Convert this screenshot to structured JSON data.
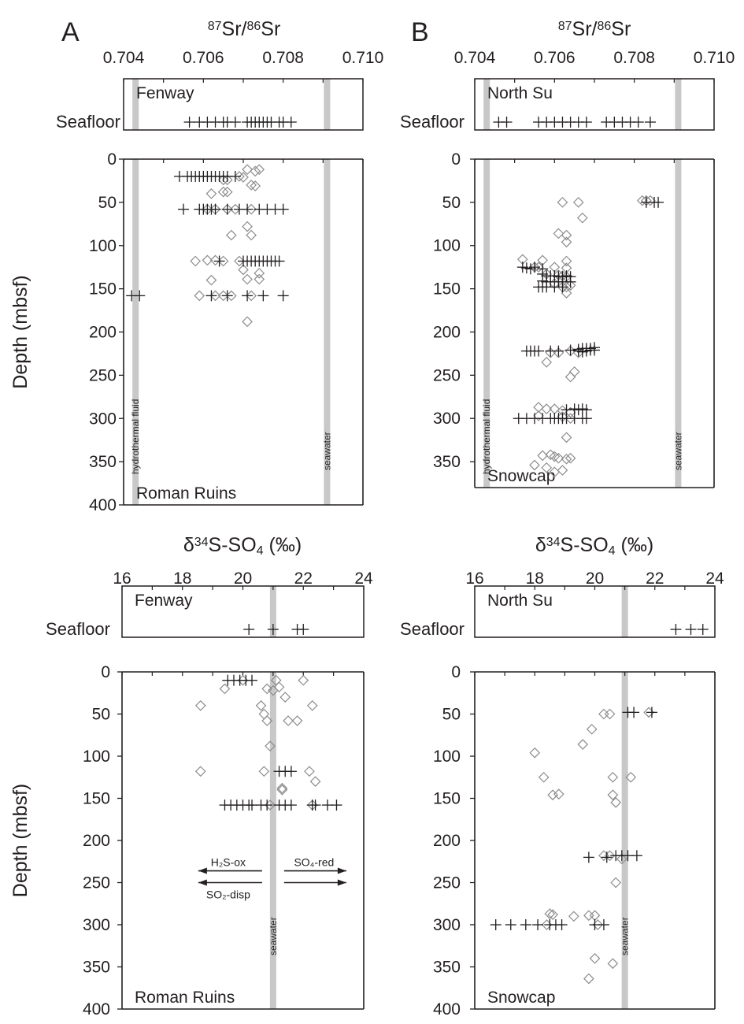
{
  "colors": {
    "ink": "#231f20",
    "reference_band": "#c8c8c8",
    "diamond": "#8c8c8c"
  },
  "marker_legend": {
    "cross": "plus-marker",
    "diamond": "diamond-marker"
  },
  "y_axis_label": "Depth (mbsf)",
  "seafloor_label": "Seafloor",
  "chart_data": [
    {
      "id": "sr_A",
      "type": "scatter",
      "panel_letter": "A",
      "title_parts": [
        "87",
        "Sr/",
        "86",
        "Sr"
      ],
      "xlim": [
        0.704,
        0.71
      ],
      "x_ticks": [
        "0.704",
        "0.706",
        "0.708",
        "0.710"
      ],
      "ylim": [
        0,
        400
      ],
      "y_ticks": [
        "0",
        "50",
        "100",
        "150",
        "200",
        "250",
        "300",
        "350",
        "400"
      ],
      "y_inverted": true,
      "seafloor_site": "Fenway",
      "site": "Roman Ruins",
      "bands": [
        {
          "x": 0.7043,
          "label": "hydrothermal fluid"
        },
        {
          "x": 0.7091,
          "label": "seawater"
        }
      ],
      "seafloor_crosses": [
        0.70565,
        0.7059,
        0.7061,
        0.7063,
        0.7065,
        0.7066,
        0.7068,
        0.7071,
        0.7072,
        0.7073,
        0.7074,
        0.7075,
        0.7076,
        0.7077,
        0.7079,
        0.708,
        0.7082
      ],
      "crosses": [
        [
          0.7054,
          20
        ],
        [
          0.7056,
          20
        ],
        [
          0.7057,
          20
        ],
        [
          0.7058,
          20
        ],
        [
          0.7059,
          20
        ],
        [
          0.706,
          20
        ],
        [
          0.7061,
          20
        ],
        [
          0.7062,
          20
        ],
        [
          0.7063,
          20
        ],
        [
          0.7064,
          20
        ],
        [
          0.7065,
          20
        ],
        [
          0.7066,
          20
        ],
        [
          0.7068,
          20
        ],
        [
          0.7055,
          58
        ],
        [
          0.7059,
          58
        ],
        [
          0.706,
          58
        ],
        [
          0.7061,
          58
        ],
        [
          0.7062,
          58
        ],
        [
          0.7063,
          58
        ],
        [
          0.7066,
          58
        ],
        [
          0.7069,
          58
        ],
        [
          0.7071,
          58
        ],
        [
          0.7074,
          58
        ],
        [
          0.7076,
          58
        ],
        [
          0.7078,
          58
        ],
        [
          0.708,
          58
        ],
        [
          0.7064,
          118
        ],
        [
          0.707,
          118
        ],
        [
          0.7071,
          118
        ],
        [
          0.7072,
          118
        ],
        [
          0.7073,
          118
        ],
        [
          0.7074,
          118
        ],
        [
          0.7075,
          118
        ],
        [
          0.7076,
          118
        ],
        [
          0.7077,
          118
        ],
        [
          0.7078,
          118
        ],
        [
          0.7079,
          118
        ],
        [
          0.7042,
          158
        ],
        [
          0.7044,
          158
        ],
        [
          0.7062,
          158
        ],
        [
          0.7066,
          158
        ],
        [
          0.7071,
          158
        ],
        [
          0.7075,
          158
        ],
        [
          0.708,
          158
        ]
      ],
      "diamonds": [
        [
          0.7071,
          12
        ],
        [
          0.7074,
          12
        ],
        [
          0.7073,
          14
        ],
        [
          0.7069,
          20
        ],
        [
          0.707,
          21
        ],
        [
          0.7065,
          24
        ],
        [
          0.7066,
          24
        ],
        [
          0.7072,
          30
        ],
        [
          0.7073,
          31
        ],
        [
          0.7065,
          38
        ],
        [
          0.7066,
          38
        ],
        [
          0.7062,
          40
        ],
        [
          0.7061,
          58
        ],
        [
          0.7063,
          58
        ],
        [
          0.7066,
          58
        ],
        [
          0.7068,
          58
        ],
        [
          0.7072,
          58
        ],
        [
          0.7071,
          78
        ],
        [
          0.7067,
          88
        ],
        [
          0.7072,
          88
        ],
        [
          0.7058,
          118
        ],
        [
          0.7061,
          117
        ],
        [
          0.7063,
          117
        ],
        [
          0.7065,
          118
        ],
        [
          0.7069,
          118
        ],
        [
          0.707,
          128
        ],
        [
          0.7074,
          132
        ],
        [
          0.7062,
          140
        ],
        [
          0.7071,
          139
        ],
        [
          0.7074,
          139
        ],
        [
          0.7059,
          158
        ],
        [
          0.7063,
          158
        ],
        [
          0.7065,
          158
        ],
        [
          0.7067,
          158
        ],
        [
          0.7072,
          158
        ],
        [
          0.7071,
          188
        ]
      ]
    },
    {
      "id": "sr_B",
      "type": "scatter",
      "panel_letter": "B",
      "title_parts": [
        "87",
        "Sr/",
        "86",
        "Sr"
      ],
      "xlim": [
        0.704,
        0.71
      ],
      "x_ticks": [
        "0.704",
        "0.706",
        "0.708",
        "0.710"
      ],
      "ylim": [
        0,
        380
      ],
      "y_ticks": [
        "0",
        "50",
        "100",
        "150",
        "200",
        "250",
        "300",
        "350"
      ],
      "y_inverted": true,
      "seafloor_site": "North Su",
      "site": "Snowcap",
      "bands": [
        {
          "x": 0.7043,
          "label": "hydrothermal fluid"
        },
        {
          "x": 0.7091,
          "label": "seawater"
        }
      ],
      "seafloor_crosses": [
        0.7046,
        0.7048,
        0.7056,
        0.7058,
        0.706,
        0.7062,
        0.7064,
        0.7066,
        0.7068,
        0.7073,
        0.7075,
        0.7077,
        0.7079,
        0.7081,
        0.7084
      ],
      "crosses": [
        [
          0.7083,
          50
        ],
        [
          0.7085,
          50
        ],
        [
          0.7086,
          50
        ],
        [
          0.7052,
          125
        ],
        [
          0.7053,
          126
        ],
        [
          0.7054,
          127
        ],
        [
          0.7055,
          125
        ],
        [
          0.7057,
          127
        ],
        [
          0.7057,
          133
        ],
        [
          0.7058,
          135
        ],
        [
          0.7059,
          135
        ],
        [
          0.706,
          135
        ],
        [
          0.7061,
          136
        ],
        [
          0.7062,
          136
        ],
        [
          0.7063,
          135
        ],
        [
          0.7064,
          136
        ],
        [
          0.7057,
          141
        ],
        [
          0.7058,
          142
        ],
        [
          0.7059,
          142
        ],
        [
          0.7061,
          142
        ],
        [
          0.7062,
          142
        ],
        [
          0.7064,
          142
        ],
        [
          0.7056,
          148
        ],
        [
          0.7057,
          148
        ],
        [
          0.7058,
          148
        ],
        [
          0.706,
          148
        ],
        [
          0.7062,
          148
        ],
        [
          0.7053,
          222
        ],
        [
          0.7054,
          222
        ],
        [
          0.7055,
          222
        ],
        [
          0.7056,
          222
        ],
        [
          0.7059,
          222
        ],
        [
          0.7061,
          222
        ],
        [
          0.7064,
          221
        ],
        [
          0.7066,
          220
        ],
        [
          0.7067,
          219
        ],
        [
          0.7068,
          219
        ],
        [
          0.7069,
          219
        ],
        [
          0.707,
          218
        ],
        [
          0.7066,
          222
        ],
        [
          0.7067,
          223
        ],
        [
          0.7068,
          222
        ],
        [
          0.7069,
          221
        ],
        [
          0.707,
          221
        ],
        [
          0.7063,
          290
        ],
        [
          0.7065,
          289
        ],
        [
          0.7066,
          290
        ],
        [
          0.7067,
          289
        ],
        [
          0.7068,
          290
        ],
        [
          0.7051,
          300
        ],
        [
          0.7053,
          300
        ],
        [
          0.7055,
          300
        ],
        [
          0.7057,
          300
        ],
        [
          0.7059,
          300
        ],
        [
          0.706,
          300
        ],
        [
          0.7061,
          300
        ],
        [
          0.7062,
          300
        ],
        [
          0.7063,
          300
        ],
        [
          0.7065,
          300
        ],
        [
          0.7067,
          300
        ],
        [
          0.7068,
          300
        ]
      ],
      "diamonds": [
        [
          0.7082,
          48
        ],
        [
          0.7083,
          48
        ],
        [
          0.7084,
          48
        ],
        [
          0.7062,
          50
        ],
        [
          0.7066,
          50
        ],
        [
          0.7067,
          68
        ],
        [
          0.7061,
          86
        ],
        [
          0.7063,
          88
        ],
        [
          0.7063,
          96
        ],
        [
          0.7052,
          116
        ],
        [
          0.7057,
          117
        ],
        [
          0.7063,
          118
        ],
        [
          0.7055,
          125
        ],
        [
          0.7056,
          125
        ],
        [
          0.706,
          125
        ],
        [
          0.7063,
          126
        ],
        [
          0.7058,
          133
        ],
        [
          0.7061,
          134
        ],
        [
          0.7062,
          135
        ],
        [
          0.7063,
          136
        ],
        [
          0.706,
          144
        ],
        [
          0.7062,
          148
        ],
        [
          0.7063,
          148
        ],
        [
          0.7064,
          146
        ],
        [
          0.7063,
          155
        ],
        [
          0.7059,
          224
        ],
        [
          0.7061,
          224
        ],
        [
          0.7064,
          222
        ],
        [
          0.7066,
          224
        ],
        [
          0.7058,
          235
        ],
        [
          0.7065,
          246
        ],
        [
          0.7064,
          252
        ],
        [
          0.7056,
          287
        ],
        [
          0.7058,
          289
        ],
        [
          0.706,
          289
        ],
        [
          0.7062,
          291
        ],
        [
          0.7064,
          293
        ],
        [
          0.7056,
          297
        ],
        [
          0.7062,
          298
        ],
        [
          0.7064,
          300
        ],
        [
          0.7063,
          322
        ],
        [
          0.7057,
          343
        ],
        [
          0.7059,
          342
        ],
        [
          0.706,
          344
        ],
        [
          0.7061,
          346
        ],
        [
          0.7063,
          347
        ],
        [
          0.7064,
          346
        ],
        [
          0.7055,
          354
        ],
        [
          0.7058,
          357
        ],
        [
          0.706,
          362
        ],
        [
          0.7062,
          360
        ]
      ]
    },
    {
      "id": "s_A",
      "type": "scatter",
      "title_parts": [
        "δ",
        "34",
        "S-SO",
        "4",
        " (‰)"
      ],
      "xlim": [
        16,
        24
      ],
      "x_ticks": [
        "16",
        "18",
        "20",
        "22",
        "24"
      ],
      "ylim": [
        0,
        400
      ],
      "y_ticks": [
        "0",
        "50",
        "100",
        "150",
        "200",
        "250",
        "300",
        "350",
        "400"
      ],
      "y_inverted": true,
      "seafloor_site": "Fenway",
      "site": "Roman Ruins",
      "bands": [
        {
          "x": 21.0,
          "label": "seawater"
        }
      ],
      "seafloor_crosses": [
        20.2,
        21.0,
        21.8,
        22.0
      ],
      "crosses": [
        [
          19.5,
          10
        ],
        [
          19.7,
          10
        ],
        [
          19.9,
          10
        ],
        [
          20.1,
          10
        ],
        [
          20.3,
          10
        ],
        [
          21.2,
          118
        ],
        [
          21.4,
          118
        ],
        [
          21.6,
          118
        ],
        [
          19.4,
          158
        ],
        [
          19.6,
          158
        ],
        [
          19.8,
          158
        ],
        [
          20.0,
          158
        ],
        [
          20.2,
          158
        ],
        [
          20.3,
          158
        ],
        [
          20.6,
          158
        ],
        [
          20.8,
          158
        ],
        [
          21.2,
          158
        ],
        [
          21.4,
          158
        ],
        [
          21.6,
          158
        ],
        [
          22.3,
          158
        ],
        [
          22.4,
          158
        ],
        [
          22.8,
          158
        ],
        [
          23.1,
          158
        ]
      ],
      "diamonds": [
        [
          19.4,
          20
        ],
        [
          20.0,
          10
        ],
        [
          20.8,
          20
        ],
        [
          21.0,
          22
        ],
        [
          21.1,
          10
        ],
        [
          21.2,
          18
        ],
        [
          21.4,
          30
        ],
        [
          22.0,
          10
        ],
        [
          18.6,
          40
        ],
        [
          20.6,
          40
        ],
        [
          22.3,
          40
        ],
        [
          20.7,
          50
        ],
        [
          20.8,
          58
        ],
        [
          21.8,
          58
        ],
        [
          21.5,
          58
        ],
        [
          20.9,
          88
        ],
        [
          18.6,
          118
        ],
        [
          20.7,
          118
        ],
        [
          22.2,
          118
        ],
        [
          22.4,
          130
        ],
        [
          21.3,
          138
        ],
        [
          21.3,
          140
        ],
        [
          20.9,
          158
        ],
        [
          22.3,
          158
        ]
      ],
      "annotations": [
        "H₂S-ox",
        "SO₄-red",
        "SO₂-disp"
      ]
    },
    {
      "id": "s_B",
      "type": "scatter",
      "title_parts": [
        "δ",
        "34",
        "S-SO",
        "4",
        " (‰)"
      ],
      "xlim": [
        16,
        24
      ],
      "x_ticks": [
        "16",
        "18",
        "20",
        "22",
        "24"
      ],
      "ylim": [
        0,
        400
      ],
      "y_ticks": [
        "0",
        "50",
        "100",
        "150",
        "200",
        "250",
        "300",
        "350",
        "400"
      ],
      "y_inverted": true,
      "seafloor_site": "North Su",
      "site": "Snowcap",
      "bands": [
        {
          "x": 21.0,
          "label": "seawater"
        }
      ],
      "seafloor_crosses": [
        22.7,
        23.2,
        23.6
      ],
      "crosses": [
        [
          21.1,
          48
        ],
        [
          21.3,
          48
        ],
        [
          21.9,
          48
        ],
        [
          19.8,
          220
        ],
        [
          20.4,
          220
        ],
        [
          20.7,
          218
        ],
        [
          20.9,
          218
        ],
        [
          21.1,
          218
        ],
        [
          21.4,
          218
        ],
        [
          16.7,
          300
        ],
        [
          17.2,
          300
        ],
        [
          17.7,
          300
        ],
        [
          18.1,
          300
        ],
        [
          18.5,
          300
        ],
        [
          18.7,
          300
        ],
        [
          18.9,
          300
        ],
        [
          20.0,
          300
        ],
        [
          20.3,
          300
        ]
      ],
      "diamonds": [
        [
          20.3,
          50
        ],
        [
          20.5,
          50
        ],
        [
          21.8,
          48
        ],
        [
          19.9,
          68
        ],
        [
          19.6,
          86
        ],
        [
          18.0,
          96
        ],
        [
          18.3,
          125
        ],
        [
          20.6,
          125
        ],
        [
          21.2,
          125
        ],
        [
          18.6,
          146
        ],
        [
          18.8,
          145
        ],
        [
          20.6,
          146
        ],
        [
          20.7,
          155
        ],
        [
          20.3,
          218
        ],
        [
          20.5,
          218
        ],
        [
          20.9,
          222
        ],
        [
          20.7,
          250
        ],
        [
          18.5,
          287
        ],
        [
          18.6,
          288
        ],
        [
          19.3,
          290
        ],
        [
          19.8,
          289
        ],
        [
          20.0,
          289
        ],
        [
          18.4,
          300
        ],
        [
          20.1,
          300
        ],
        [
          20.0,
          340
        ],
        [
          20.6,
          346
        ],
        [
          19.8,
          364
        ]
      ]
    }
  ]
}
